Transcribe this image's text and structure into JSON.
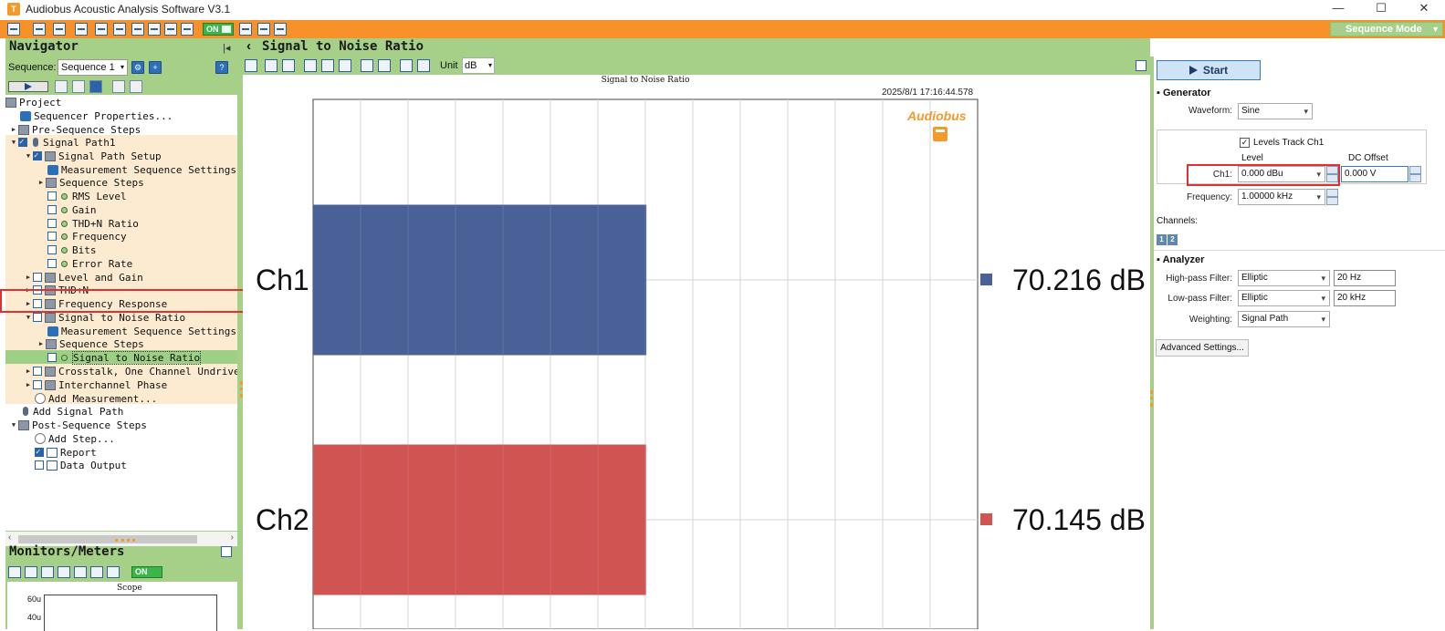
{
  "window": {
    "title": "Audiobus Acoustic Analysis Software V3.1",
    "minimize": "—",
    "maximize": "☐",
    "close": "✕",
    "app_icon": "audiobus-logo-icon"
  },
  "toolbar": {
    "on_label": "ON",
    "mode_select": "Sequence Mode",
    "mode_arrow": "▼",
    "accent": "#f7922b"
  },
  "navigator": {
    "title": "Navigator",
    "sequence_label": "Sequence:",
    "sequence_value": "Sequence 1",
    "select_arrow": "▾",
    "tree": [
      {
        "label": "Project"
      },
      {
        "label": "Sequencer Properties..."
      },
      {
        "label": "Pre-Sequence Steps"
      },
      {
        "label": "Signal Path1"
      },
      {
        "label": "Signal Path Setup"
      },
      {
        "label": "Measurement Sequence Settings"
      },
      {
        "label": "Sequence Steps"
      },
      {
        "label": "RMS Level"
      },
      {
        "label": "Gain"
      },
      {
        "label": "THD+N Ratio"
      },
      {
        "label": "Frequency"
      },
      {
        "label": "Bits"
      },
      {
        "label": "Error Rate"
      },
      {
        "label": "Level and Gain"
      },
      {
        "label": "THD+N"
      },
      {
        "label": "Frequency Response"
      },
      {
        "label": "Signal to Noise Ratio"
      },
      {
        "label": "Measurement Sequence Settings"
      },
      {
        "label": "Sequence Steps"
      },
      {
        "label": "Signal to Noise Ratio"
      },
      {
        "label": "Crosstalk, One Channel Undriven"
      },
      {
        "label": "Interchannel Phase"
      },
      {
        "label": "Add Measurement..."
      },
      {
        "label": "Add Signal Path"
      },
      {
        "label": "Post-Sequence Steps"
      },
      {
        "label": "Add Step..."
      },
      {
        "label": "Report"
      },
      {
        "label": "Data Output"
      }
    ]
  },
  "monitors": {
    "title": "Monitors/Meters",
    "on_label": "ON",
    "scope_title": "Scope",
    "scope_ticks": [
      "60u",
      "40u"
    ]
  },
  "center": {
    "title": "Signal to Noise Ratio",
    "back_icon": "‹",
    "unit_label": "Unit",
    "unit_value": "dB",
    "select_arrow": "▾"
  },
  "chart_data": {
    "type": "bar",
    "orientation": "horizontal",
    "title": "Signal to Noise Ratio",
    "timestamp": "2025/8/1 17:16:44.578",
    "brand": "Audiobus",
    "categories": [
      "Ch1",
      "Ch2"
    ],
    "values": [
      70.216,
      70.145
    ],
    "value_labels": [
      "70.216 dB",
      "70.145 dB"
    ],
    "colors": [
      "#4a6197",
      "#d05552"
    ],
    "grid": true,
    "legend_position": "right"
  },
  "generator": {
    "start_label": "Start",
    "section": "Generator",
    "waveform_label": "Waveform:",
    "waveform_value": "Sine",
    "levels_track_label": "Levels Track Ch1",
    "level_header": "Level",
    "dc_offset_header": "DC Offset",
    "ch1_label": "Ch1:",
    "ch1_level": "0.000 dBu",
    "ch1_dc_offset": "0.000 V",
    "frequency_label": "Frequency:",
    "frequency_value": "1.00000 kHz",
    "channels_label": "Channels:",
    "channel_buttons": [
      "1",
      "2"
    ]
  },
  "analyzer": {
    "section": "Analyzer",
    "hp_label": "High-pass Filter:",
    "hp_type": "Elliptic",
    "hp_value": "20 Hz",
    "lp_label": "Low-pass Filter:",
    "lp_type": "Elliptic",
    "lp_value": "20 kHz",
    "weighting_label": "Weighting:",
    "weighting_value": "Signal Path",
    "advanced_label": "Advanced Settings...",
    "select_arrow": "▾"
  }
}
